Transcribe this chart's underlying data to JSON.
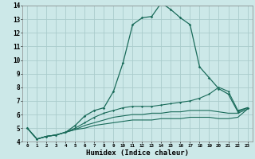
{
  "xlabel": "Humidex (Indice chaleur)",
  "background_color": "#cce8e8",
  "grid_color": "#aacccc",
  "line_color": "#1a6b5a",
  "xlim": [
    -0.5,
    23.5
  ],
  "ylim": [
    4,
    14
  ],
  "x_ticks": [
    0,
    1,
    2,
    3,
    4,
    5,
    6,
    7,
    8,
    9,
    10,
    11,
    12,
    13,
    14,
    15,
    16,
    17,
    18,
    19,
    20,
    21,
    22,
    23
  ],
  "y_ticks": [
    4,
    5,
    6,
    7,
    8,
    9,
    10,
    11,
    12,
    13,
    14
  ],
  "curve1_x": [
    0,
    1,
    2,
    3,
    4,
    5,
    6,
    7,
    8,
    9,
    10,
    11,
    12,
    13,
    14,
    15,
    16,
    17,
    18,
    19,
    20,
    21,
    22,
    23
  ],
  "curve1_y": [
    5.0,
    4.2,
    4.4,
    4.5,
    4.7,
    5.2,
    5.9,
    6.3,
    6.5,
    7.7,
    9.8,
    12.6,
    13.1,
    13.2,
    14.2,
    13.7,
    13.1,
    12.6,
    9.5,
    8.7,
    7.9,
    7.5,
    6.2,
    6.5
  ],
  "curve2_x": [
    0,
    1,
    2,
    3,
    4,
    5,
    6,
    7,
    8,
    9,
    10,
    11,
    12,
    13,
    14,
    15,
    16,
    17,
    18,
    19,
    20,
    21,
    22,
    23
  ],
  "curve2_y": [
    5.0,
    4.2,
    4.4,
    4.5,
    4.7,
    5.0,
    5.4,
    5.8,
    6.1,
    6.3,
    6.5,
    6.6,
    6.6,
    6.6,
    6.7,
    6.8,
    6.9,
    7.0,
    7.2,
    7.5,
    8.0,
    7.7,
    6.3,
    6.5
  ],
  "curve3_x": [
    0,
    1,
    2,
    3,
    4,
    5,
    6,
    7,
    8,
    9,
    10,
    11,
    12,
    13,
    14,
    15,
    16,
    17,
    18,
    19,
    20,
    21,
    22,
    23
  ],
  "curve3_y": [
    5.0,
    4.2,
    4.4,
    4.5,
    4.7,
    4.9,
    5.2,
    5.4,
    5.6,
    5.8,
    5.9,
    6.0,
    6.0,
    6.1,
    6.1,
    6.2,
    6.2,
    6.3,
    6.3,
    6.3,
    6.2,
    6.1,
    6.1,
    6.4
  ],
  "curve4_x": [
    0,
    1,
    2,
    3,
    4,
    5,
    6,
    7,
    8,
    9,
    10,
    11,
    12,
    13,
    14,
    15,
    16,
    17,
    18,
    19,
    20,
    21,
    22,
    23
  ],
  "curve4_y": [
    5.0,
    4.2,
    4.4,
    4.5,
    4.7,
    4.9,
    5.0,
    5.2,
    5.3,
    5.4,
    5.5,
    5.6,
    5.6,
    5.6,
    5.7,
    5.7,
    5.7,
    5.8,
    5.8,
    5.8,
    5.7,
    5.7,
    5.8,
    6.4
  ]
}
